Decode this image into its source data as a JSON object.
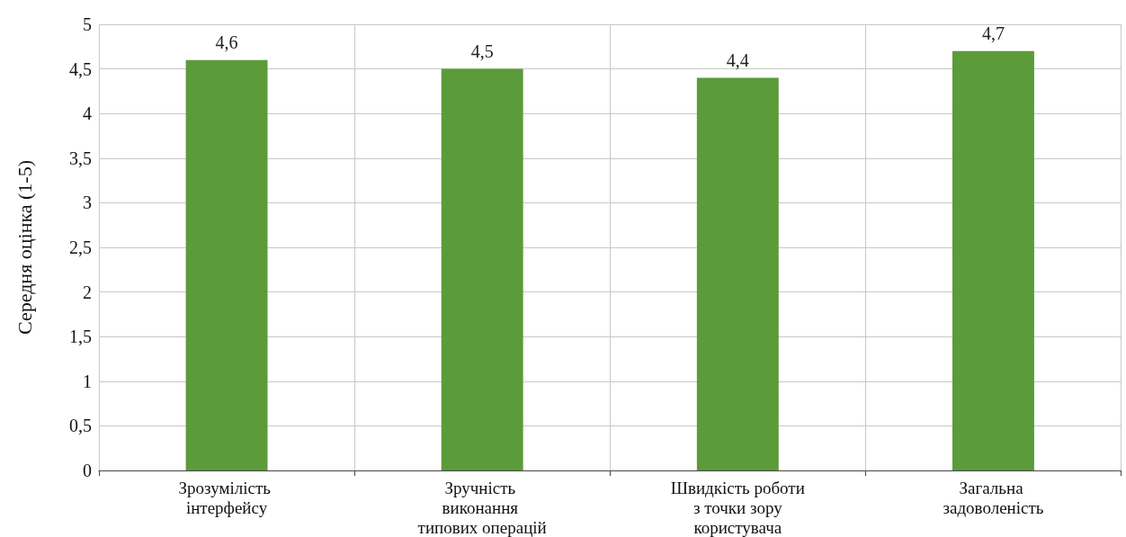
{
  "chart_data": {
    "type": "bar",
    "ylabel": "Середня оцінка (1-5)",
    "categories": [
      "Зрозумілість інтерфейсу",
      "Зручність виконання типових операцій",
      "Швидкість роботи з точки зору користувача",
      "Загальна задоволеність"
    ],
    "values": [
      4.6,
      4.5,
      4.4,
      4.7
    ],
    "color": "#5b9b3a",
    "value_labels": [
      "4,6",
      "4,5",
      "4,4",
      "4,7"
    ],
    "ylim": [
      0,
      5
    ],
    "yticks": [
      0,
      {
        "value": 0.5,
        "label": "0,5"
      },
      1,
      {
        "value": 1.5,
        "label": "1,5"
      },
      2,
      {
        "value": 2.5,
        "label": "2,5"
      },
      3,
      {
        "value": 3.5,
        "label": "3,5"
      },
      4,
      {
        "value": 4.5,
        "label": "4,5"
      },
      5
    ],
    "grid": true
  }
}
